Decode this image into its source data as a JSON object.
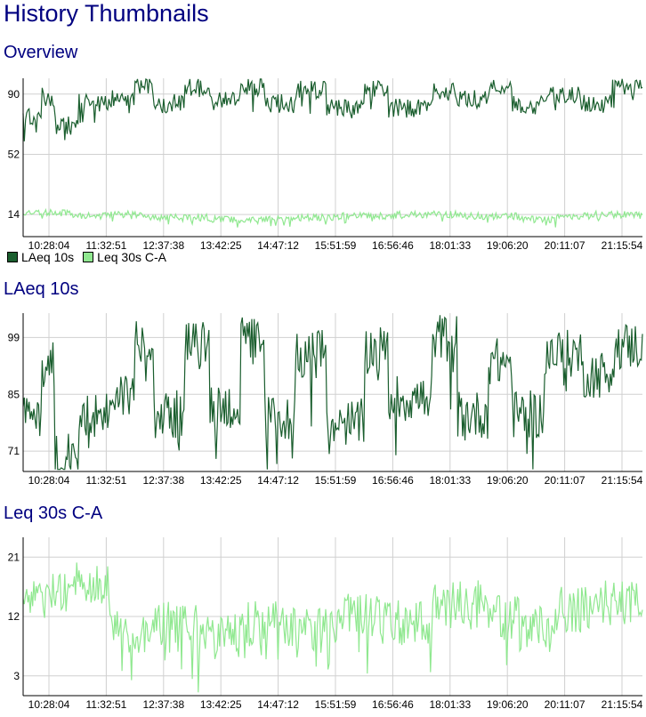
{
  "page": {
    "title": "History Thumbnails"
  },
  "colors": {
    "laeq": "#1a5e2e",
    "leq": "#90e890",
    "grid": "#d0d0d0",
    "title": "#000080"
  },
  "time_labels": [
    "10:28:04",
    "11:32:51",
    "12:37:38",
    "13:42:25",
    "14:47:12",
    "15:51:59",
    "16:56:46",
    "18:01:33",
    "19:06:20",
    "20:11:07",
    "21:15:54"
  ],
  "chart_data": [
    {
      "type": "line",
      "title": "Overview",
      "x": "time",
      "yticks": [
        90,
        52,
        14
      ],
      "ylim": [
        0,
        100
      ],
      "legend": {
        "placement": "bottom-left",
        "entries": [
          "LAeq 10s",
          "Leq 30s C-A"
        ]
      },
      "series": [
        {
          "name": "LAeq 10s",
          "segments": [
            [
              0.0,
              0.03,
              75
            ],
            [
              0.03,
              0.05,
              88
            ],
            [
              0.05,
              0.09,
              70
            ],
            [
              0.09,
              0.14,
              85
            ],
            [
              0.14,
              0.18,
              87
            ],
            [
              0.18,
              0.21,
              95
            ],
            [
              0.21,
              0.26,
              84
            ],
            [
              0.26,
              0.3,
              94
            ],
            [
              0.3,
              0.35,
              86
            ],
            [
              0.35,
              0.39,
              95
            ],
            [
              0.39,
              0.44,
              84
            ],
            [
              0.44,
              0.49,
              93
            ],
            [
              0.49,
              0.55,
              82
            ],
            [
              0.55,
              0.59,
              93
            ],
            [
              0.59,
              0.66,
              81
            ],
            [
              0.66,
              0.7,
              92
            ],
            [
              0.7,
              0.75,
              87
            ],
            [
              0.75,
              0.79,
              95
            ],
            [
              0.79,
              0.84,
              83
            ],
            [
              0.84,
              0.9,
              90
            ],
            [
              0.9,
              0.95,
              84
            ],
            [
              0.95,
              1.0,
              94
            ]
          ]
        },
        {
          "name": "Leq 30s C-A",
          "segments": [
            [
              0.0,
              0.08,
              15
            ],
            [
              0.08,
              0.14,
              13
            ],
            [
              0.14,
              0.2,
              14
            ],
            [
              0.2,
              0.3,
              12
            ],
            [
              0.3,
              0.4,
              11
            ],
            [
              0.4,
              0.5,
              12
            ],
            [
              0.5,
              0.6,
              13
            ],
            [
              0.6,
              0.7,
              14
            ],
            [
              0.7,
              0.8,
              13
            ],
            [
              0.8,
              0.86,
              11
            ],
            [
              0.86,
              0.92,
              13
            ],
            [
              0.92,
              1.0,
              14
            ]
          ]
        }
      ]
    },
    {
      "type": "line",
      "title": "LAeq 10s",
      "x": "time",
      "yticks": [
        99,
        85,
        71
      ],
      "ylim": [
        66,
        105
      ],
      "series": [
        {
          "name": "LAeq 10s",
          "segments": [
            [
              0.0,
              0.03,
              80
            ],
            [
              0.03,
              0.05,
              92
            ],
            [
              0.05,
              0.09,
              70
            ],
            [
              0.09,
              0.14,
              80
            ],
            [
              0.14,
              0.18,
              85
            ],
            [
              0.18,
              0.21,
              99
            ],
            [
              0.21,
              0.26,
              80
            ],
            [
              0.26,
              0.3,
              97
            ],
            [
              0.3,
              0.35,
              82
            ],
            [
              0.35,
              0.39,
              98
            ],
            [
              0.39,
              0.44,
              79
            ],
            [
              0.44,
              0.49,
              95
            ],
            [
              0.49,
              0.55,
              78
            ],
            [
              0.55,
              0.59,
              96
            ],
            [
              0.59,
              0.66,
              84
            ],
            [
              0.66,
              0.7,
              99
            ],
            [
              0.7,
              0.75,
              80
            ],
            [
              0.75,
              0.79,
              93
            ],
            [
              0.79,
              0.84,
              80
            ],
            [
              0.84,
              0.9,
              95
            ],
            [
              0.9,
              0.95,
              90
            ],
            [
              0.95,
              1.0,
              97
            ]
          ]
        }
      ]
    },
    {
      "type": "line",
      "title": "Leq 30s C-A",
      "x": "time",
      "yticks": [
        21,
        12,
        3
      ],
      "ylim": [
        0,
        24
      ],
      "series": [
        {
          "name": "Leq 30s C-A",
          "segments": [
            [
              0.0,
              0.04,
              14
            ],
            [
              0.04,
              0.08,
              16
            ],
            [
              0.08,
              0.14,
              17
            ],
            [
              0.14,
              0.2,
              10
            ],
            [
              0.2,
              0.28,
              11
            ],
            [
              0.28,
              0.35,
              9
            ],
            [
              0.35,
              0.42,
              11
            ],
            [
              0.42,
              0.5,
              10
            ],
            [
              0.5,
              0.58,
              12
            ],
            [
              0.58,
              0.66,
              11
            ],
            [
              0.66,
              0.74,
              14
            ],
            [
              0.74,
              0.8,
              12
            ],
            [
              0.8,
              0.86,
              10
            ],
            [
              0.86,
              0.92,
              13
            ],
            [
              0.92,
              1.0,
              14
            ]
          ]
        }
      ]
    }
  ]
}
